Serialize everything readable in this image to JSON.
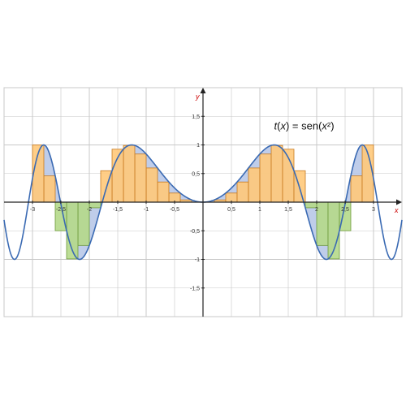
{
  "chart_data": {
    "type": "line",
    "function_label": {
      "name": "t",
      "var": "x",
      "equals_text": " = sen(",
      "inner_var": "x",
      "power": "²",
      "close": ")"
    },
    "axes": {
      "x_label": "x",
      "y_label": "y",
      "xlim": [
        -3.5,
        3.5
      ],
      "ylim": [
        -2,
        2
      ],
      "x_ticks": [
        {
          "v": -3,
          "label": "-3"
        },
        {
          "v": -2.5,
          "label": "-2,5"
        },
        {
          "v": -2,
          "label": "-2"
        },
        {
          "v": -1.5,
          "label": "-1,5"
        },
        {
          "v": -1,
          "label": "-1"
        },
        {
          "v": -0.5,
          "label": "-0,5"
        },
        {
          "v": 0.5,
          "label": "0,5"
        },
        {
          "v": 1,
          "label": "1"
        },
        {
          "v": 1.5,
          "label": "1,5"
        },
        {
          "v": 2,
          "label": "2"
        },
        {
          "v": 2.5,
          "label": "2,5"
        },
        {
          "v": 3,
          "label": "3"
        }
      ],
      "y_ticks": [
        {
          "v": 1.5,
          "label": "1,5"
        },
        {
          "v": 1,
          "label": "1"
        },
        {
          "v": 0.5,
          "label": "0,5"
        },
        {
          "v": -0.5,
          "label": "-0,5"
        },
        {
          "v": -1,
          "label": "-1"
        },
        {
          "v": -1.5,
          "label": "-1,5"
        }
      ],
      "grid": true
    },
    "curve": {
      "expression": "sin(x^2)",
      "domain": [
        -3.5,
        3.5
      ],
      "samples": 700
    },
    "riemann": {
      "domain": [
        -3,
        3
      ],
      "rectangles_per_side": 15,
      "height_rule": "sin(x^2) at the endpoint of each subinterval nearest the origin",
      "positive_rect_color": "#ffc97a",
      "negative_rect_color": "#b5d98a"
    },
    "colors": {
      "curve": "#3a6ab3",
      "area_fill": "#b4c4e6",
      "axis": "#222222",
      "grid": "#c8c8c8",
      "rect_stroke": "#c77a20",
      "neg_rect_stroke": "#6d9a3b",
      "axis_label": "#cc0000"
    }
  }
}
